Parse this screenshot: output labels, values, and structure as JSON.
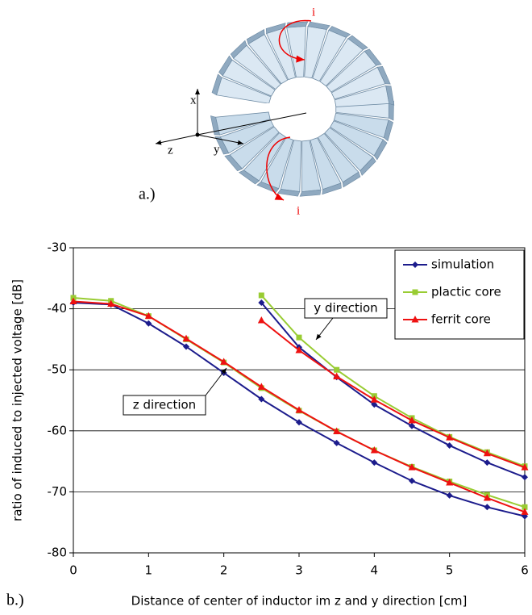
{
  "diagram": {
    "axis_labels": [
      "x",
      "y",
      "z"
    ],
    "current_labels": [
      "i",
      "i"
    ],
    "label": "a.)"
  },
  "chart_data": {
    "type": "line",
    "panel_label": "b.)",
    "x_label": "Distance of center of inductor im z and y direction [cm]",
    "y_label": "ratio of induced to injected voltage [dB]",
    "x": [
      0,
      0.5,
      1,
      1.5,
      2,
      2.5,
      3,
      3.5,
      4,
      4.5,
      5,
      5.5,
      6
    ],
    "xlim": [
      0,
      6
    ],
    "xticks": [
      0,
      1,
      2,
      3,
      4,
      5,
      6
    ],
    "ylim": [
      -80,
      -30
    ],
    "yticks": [
      -80,
      -70,
      -60,
      -50,
      -40,
      -30
    ],
    "grid": true,
    "legend": "upper right",
    "annotations": [
      "z direction",
      "y direction"
    ],
    "series": [
      {
        "name": "simulation",
        "color": "#1c1c8c",
        "marker": "diamond",
        "z_values": [
          -39,
          -39.3,
          -42.4,
          -46.2,
          -50.5,
          -54.8,
          -58.6,
          -62,
          -65.2,
          -68.2,
          -70.6,
          -72.5,
          -74
        ],
        "y_values": [
          null,
          null,
          null,
          null,
          null,
          -39,
          -46.3,
          -51.2,
          -55.7,
          -59.2,
          -62.4,
          -65.2,
          -67.6
        ]
      },
      {
        "name": "plactic core",
        "color": "#99cc33",
        "marker": "square",
        "z_values": [
          -38.2,
          -38.7,
          -41.2,
          -45,
          -48.8,
          -53,
          -56.7,
          -60.1,
          -63.2,
          -65.9,
          -68.3,
          -70.5,
          -72.5
        ],
        "y_values": [
          null,
          null,
          null,
          null,
          null,
          -37.8,
          -44.7,
          -50,
          -54.3,
          -57.9,
          -61,
          -63.5,
          -65.8
        ]
      },
      {
        "name": "ferrit core",
        "color": "#ee1111",
        "marker": "triangle",
        "z_values": [
          -38.8,
          -39.2,
          -41.2,
          -44.9,
          -48.7,
          -52.8,
          -56.6,
          -60.1,
          -63.2,
          -66,
          -68.5,
          -71,
          -73.3
        ],
        "y_values": [
          null,
          null,
          null,
          null,
          null,
          -41.9,
          -46.8,
          -51.1,
          -54.9,
          -58.3,
          -61.1,
          -63.7,
          -66
        ]
      }
    ]
  }
}
